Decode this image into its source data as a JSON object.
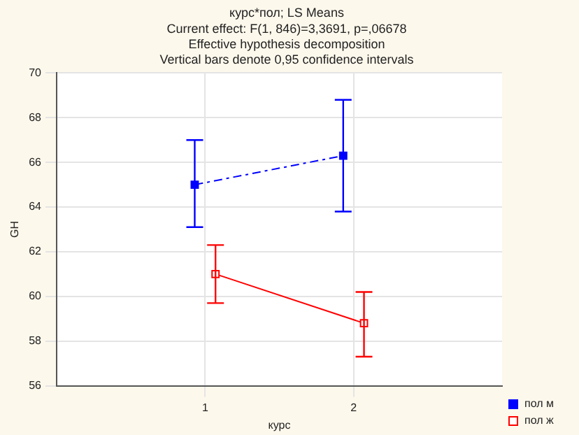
{
  "chart_data": {
    "type": "line",
    "title": "курс*пол; LS Means",
    "subtitle": "Current effect: F(1, 846)=3,3691, p=,06678",
    "annotations": [
      "Effective hypothesis decomposition",
      "Vertical bars denote 0,95 confidence intervals"
    ],
    "xlabel": "курс",
    "ylabel": "GH",
    "xlim": [
      0,
      3
    ],
    "xticks": [
      1,
      2
    ],
    "ylim": [
      56,
      70
    ],
    "yticks": [
      56,
      58,
      60,
      62,
      64,
      66,
      68,
      70
    ],
    "grid": true,
    "legend": "bottom right",
    "series": [
      {
        "name": "пол м",
        "color": "#0000ff",
        "x": [
          0.93,
          1.93
        ],
        "values": [
          65.0,
          66.3
        ],
        "errors": [
          [
            63.1,
            67.0
          ],
          [
            63.8,
            68.8
          ]
        ],
        "marker": "square",
        "line_style": "dashed"
      },
      {
        "name": "пол ж",
        "color": "#ff0000",
        "x": [
          1.07,
          2.07
        ],
        "values": [
          61.0,
          58.8
        ],
        "errors": [
          [
            59.7,
            62.3
          ],
          [
            57.3,
            60.2
          ]
        ],
        "marker": "square",
        "line_style": "solid"
      }
    ]
  }
}
